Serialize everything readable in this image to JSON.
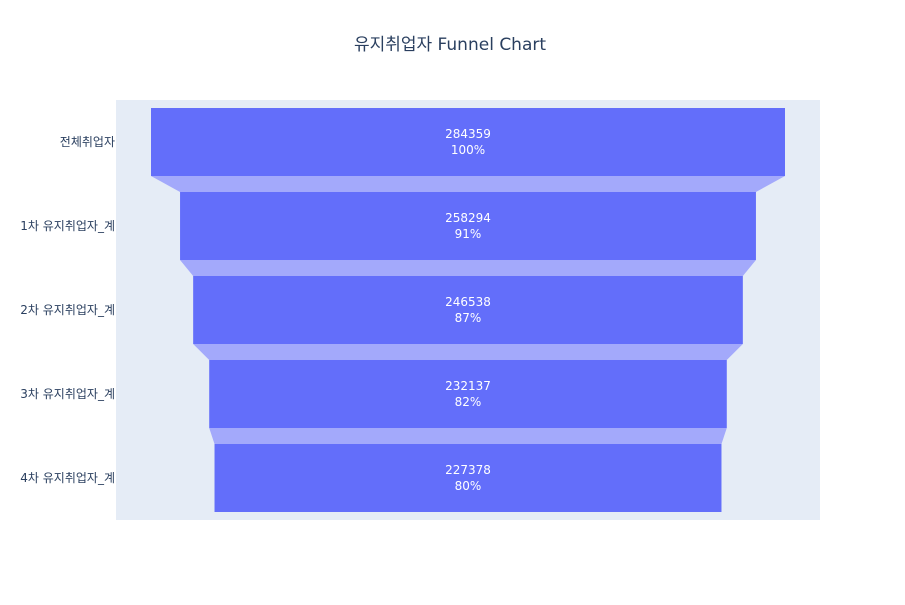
{
  "chart_data": {
    "type": "funnel",
    "title": "유지취업자 Funnel Chart",
    "categories": [
      "전체취업자",
      "1차 유지취업자_계",
      "2차 유지취업자_계",
      "3차 유지취업자_계",
      "4차 유지취업자_계"
    ],
    "values": [
      284359,
      258294,
      246538,
      232137,
      227378
    ],
    "percent_labels": [
      "100%",
      "91%",
      "87%",
      "82%",
      "80%"
    ],
    "grid": false,
    "legend": "none"
  },
  "colors": {
    "bar": "#636efa",
    "connector": "#a3a9fb",
    "plot_bg": "#e5ecf6",
    "title": "#2a3f5f",
    "label_text": "#ffffff"
  }
}
